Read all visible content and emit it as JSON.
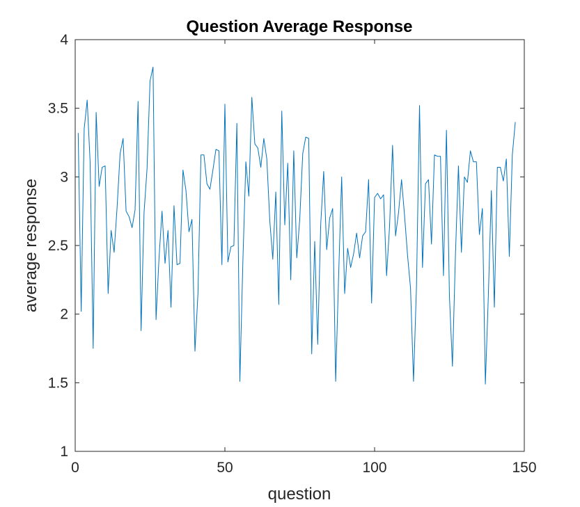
{
  "chart_data": {
    "type": "line",
    "title": "Question Average Response",
    "xlabel": "question",
    "ylabel": "average response",
    "xlim": [
      0,
      150
    ],
    "ylim": [
      1,
      4
    ],
    "xticks": [
      0,
      50,
      100,
      150
    ],
    "yticks": [
      1,
      1.5,
      2,
      2.5,
      3,
      3.5,
      4
    ],
    "xtick_labels": [
      "0",
      "50",
      "100",
      "150"
    ],
    "ytick_labels": [
      "1",
      "1.5",
      "2",
      "2.5",
      "3",
      "3.5",
      "4"
    ],
    "grid": false,
    "line_color": "#0072BD",
    "series": [
      {
        "x": [
          1,
          2,
          3,
          4,
          5,
          6,
          7,
          8,
          9,
          10,
          11,
          12,
          13,
          14,
          15,
          16,
          17,
          18,
          19,
          20,
          21,
          22,
          23,
          24,
          25,
          26,
          27,
          28,
          29,
          30,
          31,
          32,
          33,
          34,
          35,
          36,
          37,
          38,
          39,
          40,
          41,
          42,
          43,
          44,
          45,
          46,
          47,
          48,
          49,
          50,
          51,
          52,
          53,
          54,
          55,
          56,
          57,
          58,
          59,
          60,
          61,
          62,
          63,
          64,
          65,
          66,
          67,
          68,
          69,
          70,
          71,
          72,
          73,
          74,
          75,
          76,
          77,
          78,
          79,
          80,
          81,
          82,
          83,
          84,
          85,
          86,
          87,
          88,
          89,
          90,
          91,
          92,
          93,
          94,
          95,
          96,
          97,
          98,
          99,
          100,
          101,
          102,
          103,
          104,
          105,
          106,
          107,
          108,
          109,
          110,
          111,
          112,
          113,
          114,
          115,
          116,
          117,
          118,
          119,
          120,
          121,
          122,
          123,
          124,
          125,
          126,
          127,
          128,
          129,
          130,
          131,
          132,
          133,
          134,
          135,
          136,
          137,
          138,
          139,
          140,
          141,
          142,
          143,
          144,
          145,
          146,
          147
        ],
        "values": [
          3.32,
          2.02,
          3.35,
          3.56,
          3.1,
          1.75,
          3.47,
          2.93,
          3.07,
          3.08,
          2.15,
          2.61,
          2.45,
          2.78,
          3.17,
          3.28,
          2.75,
          2.71,
          2.63,
          2.76,
          3.55,
          1.88,
          2.74,
          3.06,
          3.7,
          3.8,
          1.96,
          2.41,
          2.75,
          2.37,
          2.61,
          2.05,
          2.79,
          2.36,
          2.37,
          3.05,
          2.9,
          2.6,
          2.69,
          1.73,
          2.15,
          3.16,
          3.16,
          2.95,
          2.91,
          3.05,
          3.2,
          3.19,
          2.36,
          3.53,
          2.38,
          2.49,
          2.5,
          3.39,
          1.51,
          2.38,
          3.11,
          2.86,
          3.58,
          3.24,
          3.21,
          3.07,
          3.28,
          3.13,
          2.68,
          2.4,
          2.89,
          2.07,
          3.48,
          2.65,
          3.1,
          2.25,
          3.19,
          2.41,
          2.69,
          3.17,
          3.29,
          3.28,
          1.71,
          2.53,
          1.78,
          2.65,
          3.04,
          2.47,
          2.7,
          2.77,
          1.51,
          2.29,
          3.0,
          2.15,
          2.48,
          2.34,
          2.44,
          2.59,
          2.41,
          2.57,
          2.6,
          2.98,
          2.08,
          2.85,
          2.88,
          2.84,
          2.87,
          2.28,
          2.64,
          3.23,
          2.57,
          2.74,
          2.98,
          2.72,
          2.43,
          2.19,
          1.51,
          2.21,
          3.52,
          2.34,
          2.95,
          2.98,
          2.51,
          3.16,
          3.15,
          3.15,
          2.28,
          3.34,
          2.13,
          1.62,
          2.43,
          3.08,
          2.45,
          3.0,
          2.96,
          3.19,
          3.11,
          3.11,
          2.58,
          2.77,
          1.49,
          2.14,
          2.9,
          2.05,
          3.07,
          3.07,
          2.97,
          3.13,
          2.42,
          3.16,
          3.4
        ]
      }
    ]
  }
}
